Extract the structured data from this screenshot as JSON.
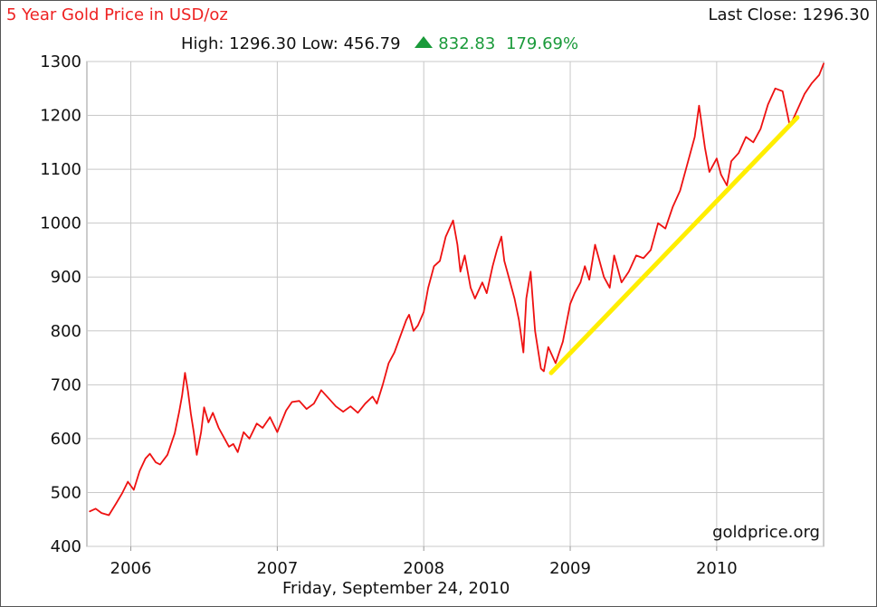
{
  "header": {
    "title": "5 Year Gold Price in USD/oz",
    "last_close_label": "Last Close: 1296.30",
    "high_label": "High: 1296.30",
    "low_label": "Low: 456.79",
    "change_value": "832.83",
    "change_percent": "179.69%"
  },
  "footer": {
    "date": "Friday, September 24, 2010",
    "watermark": "goldprice.org"
  },
  "colors": {
    "title": "#ee2222",
    "price_line": "#ee1111",
    "trend_line": "#ffee00",
    "change_up": "#1a9a3a",
    "grid": "#c8c8c8",
    "axis": "#999999"
  },
  "chart_data": {
    "type": "line",
    "title": "5 Year Gold Price in USD/oz",
    "xlabel": "",
    "ylabel": "",
    "xlim": [
      2005.7,
      2010.73
    ],
    "ylim": [
      400,
      1300
    ],
    "x_tick_values": [
      2006,
      2007,
      2008,
      2009,
      2010
    ],
    "x_tick_labels": [
      "2006",
      "2007",
      "2008",
      "2009",
      "2010"
    ],
    "y_ticks": [
      400,
      500,
      600,
      700,
      800,
      900,
      1000,
      1100,
      1200,
      1300
    ],
    "grid": true,
    "legend": "none",
    "series": [
      {
        "kind": "price",
        "x": [
          2005.72,
          2005.76,
          2005.8,
          2005.85,
          2005.9,
          2005.94,
          2005.98,
          2006.02,
          2006.06,
          2006.1,
          2006.13,
          2006.17,
          2006.2,
          2006.25,
          2006.3,
          2006.33,
          2006.35,
          2006.37,
          2006.39,
          2006.41,
          2006.43,
          2006.45,
          2006.48,
          2006.5,
          2006.53,
          2006.56,
          2006.6,
          2006.63,
          2006.67,
          2006.7,
          2006.73,
          2006.77,
          2006.81,
          2006.86,
          2006.9,
          2006.95,
          2007.0,
          2007.03,
          2007.06,
          2007.1,
          2007.15,
          2007.2,
          2007.25,
          2007.3,
          2007.35,
          2007.4,
          2007.45,
          2007.5,
          2007.55,
          2007.6,
          2007.65,
          2007.68,
          2007.72,
          2007.76,
          2007.8,
          2007.84,
          2007.88,
          2007.9,
          2007.93,
          2007.96,
          2008.0,
          2008.03,
          2008.07,
          2008.11,
          2008.15,
          2008.2,
          2008.23,
          2008.25,
          2008.28,
          2008.32,
          2008.35,
          2008.4,
          2008.43,
          2008.47,
          2008.5,
          2008.53,
          2008.55,
          2008.58,
          2008.62,
          2008.65,
          2008.68,
          2008.7,
          2008.73,
          2008.76,
          2008.8,
          2008.82,
          2008.85,
          2008.9,
          2008.95,
          2009.0,
          2009.03,
          2009.07,
          2009.1,
          2009.13,
          2009.17,
          2009.2,
          2009.23,
          2009.27,
          2009.3,
          2009.35,
          2009.4,
          2009.45,
          2009.5,
          2009.55,
          2009.6,
          2009.65,
          2009.7,
          2009.75,
          2009.8,
          2009.85,
          2009.88,
          2009.92,
          2009.95,
          2010.0,
          2010.03,
          2010.07,
          2010.1,
          2010.15,
          2010.2,
          2010.25,
          2010.3,
          2010.35,
          2010.4,
          2010.45,
          2010.5,
          2010.55,
          2010.6,
          2010.65,
          2010.7,
          2010.73
        ],
        "y": [
          465,
          470,
          462,
          458,
          480,
          498,
          520,
          505,
          540,
          563,
          572,
          556,
          552,
          570,
          610,
          650,
          680,
          722,
          688,
          646,
          612,
          570,
          612,
          658,
          630,
          648,
          620,
          605,
          585,
          590,
          575,
          612,
          600,
          628,
          620,
          640,
          612,
          632,
          652,
          668,
          670,
          655,
          665,
          690,
          675,
          660,
          650,
          660,
          648,
          665,
          678,
          665,
          700,
          740,
          760,
          790,
          820,
          830,
          800,
          810,
          835,
          880,
          920,
          930,
          975,
          1005,
          960,
          910,
          940,
          880,
          860,
          890,
          870,
          920,
          950,
          975,
          930,
          900,
          860,
          820,
          760,
          860,
          910,
          800,
          730,
          725,
          770,
          740,
          780,
          850,
          870,
          890,
          920,
          895,
          960,
          930,
          900,
          880,
          940,
          890,
          910,
          940,
          935,
          950,
          1000,
          990,
          1030,
          1060,
          1110,
          1160,
          1218,
          1140,
          1095,
          1120,
          1090,
          1070,
          1115,
          1130,
          1160,
          1150,
          1175,
          1220,
          1250,
          1245,
          1180,
          1210,
          1240,
          1260,
          1275,
          1296
        ]
      },
      {
        "kind": "trendline",
        "x": [
          2008.87,
          2010.55
        ],
        "y": [
          722,
          1196
        ]
      }
    ]
  }
}
